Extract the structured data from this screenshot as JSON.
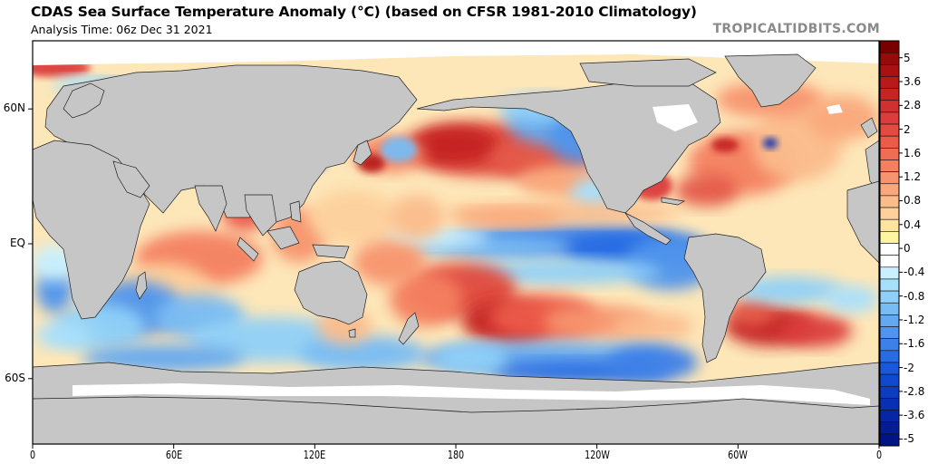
{
  "header": {
    "title": "CDAS Sea Surface Temperature Anomaly (°C) (based on CFSR 1981-2010 Climatology)",
    "subtitle": "Analysis Time: 06z Dec 31 2021",
    "watermark": "TROPICALTIDBITS.COM"
  },
  "map": {
    "projection": "equirectangular",
    "central_longitude": "180",
    "lon_range": [
      "0",
      "0"
    ],
    "lat_ticks": [
      "60N",
      "EQ",
      "60S"
    ],
    "lon_ticks": [
      "0",
      "60E",
      "120E",
      "180",
      "120W",
      "60W",
      "0"
    ],
    "land_color": "#c6c6c6",
    "ice_color": "#ffffff",
    "notable_features": [
      "Strong La Nina cold tongue along equatorial central/eastern Pacific",
      "Warm anomalies in North Pacific (Kuroshio extension) up to ~3 C",
      "Warm South Pacific band northwest-southeast from 180 to 120W",
      "Cold anomalies off Pacific Northwest / Gulf of Alaska",
      "Warm Gulf of Mexico and US East coast; cold spot near Gulf Stream",
      "Warm SW Atlantic off Argentina",
      "Cold Southern Ocean south of Africa and near Antarctica"
    ]
  },
  "colorbar": {
    "unit": "C",
    "tick_labels": [
      "5",
      "3.6",
      "2.8",
      "2",
      "1.6",
      "1.2",
      "0.8",
      "0.4",
      "0",
      "-0.4",
      "-0.8",
      "-1.2",
      "-1.6",
      "-2",
      "-2.8",
      "-3.6",
      "-5"
    ],
    "colors_top_to_bottom": [
      "#7a0000",
      "#960a0a",
      "#aa1212",
      "#b81a1a",
      "#c42424",
      "#d03030",
      "#dc3c3c",
      "#e44a40",
      "#ec5a48",
      "#f06c54",
      "#f48060",
      "#f7946e",
      "#f9a87c",
      "#fbbc8c",
      "#fdd09c",
      "#fee49c",
      "#fff4a0",
      "#ffffff",
      "#ffffff",
      "#c8f0ff",
      "#a8e0fc",
      "#90d0f8",
      "#78bcf4",
      "#64a8f0",
      "#5094ec",
      "#3c80e8",
      "#286ce4",
      "#1858dc",
      "#1048d0",
      "#0c3cc4",
      "#0830b4",
      "#0626a4",
      "#041c94",
      "#021484"
    ]
  }
}
